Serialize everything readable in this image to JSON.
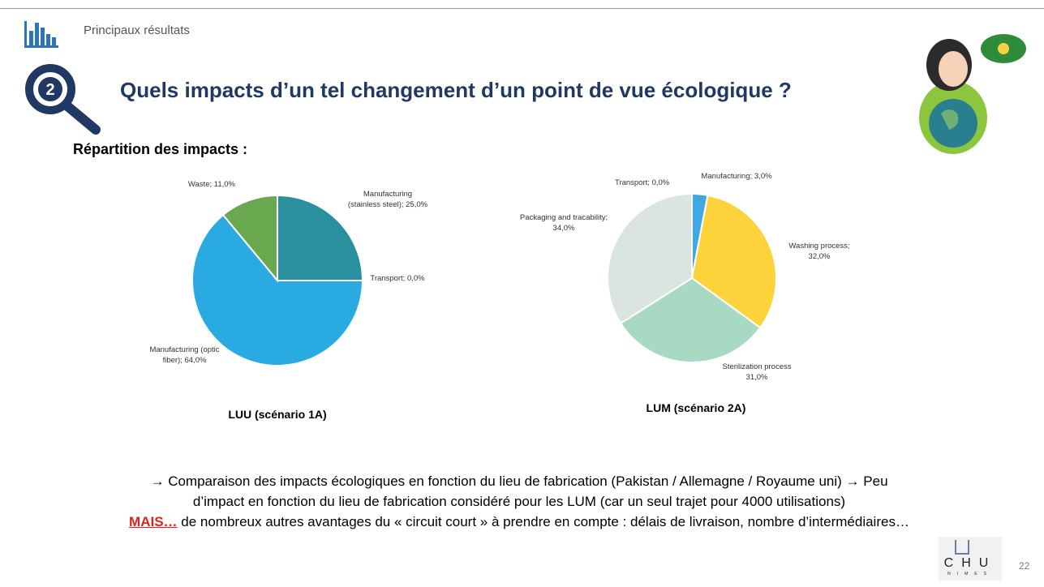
{
  "header": {
    "section": "Principaux résultats",
    "number": "2",
    "title": "Quels impacts d’un tel changement d’un point de vue écologique ?"
  },
  "subtitle": "Répartition des impacts :",
  "chart_data": [
    {
      "type": "pie",
      "title": "LUU (scénario 1A)",
      "values": [
        25,
        0,
        64,
        11
      ],
      "value_labels": [
        "Manufacturing (stainless steel); 25,0%",
        "Transport; 0,0%",
        "Manufacturing (optic fiber); 64,0%",
        "Waste; 11,0%"
      ],
      "colors": [
        "#2a8f9e",
        "#6b8e9c",
        "#29abe2",
        "#6aa84f"
      ]
    },
    {
      "type": "pie",
      "title": "LUM (scénario 2A)",
      "values": [
        0,
        3,
        32,
        31,
        34
      ],
      "value_labels": [
        "Transport; 0,0%",
        "Manufacturing; 3,0%",
        "Washing process; 32,0%",
        "Sterilization process 31,0%",
        "Packaging and tracability; 34,0%"
      ],
      "colors": [
        "#8fb3c8",
        "#3fa9e0",
        "#fcd33b",
        "#a8d9c2",
        "#d9e5de"
      ]
    }
  ],
  "body": {
    "line1": "→ Comparaison des impacts écologiques en fonction du lieu de fabrication (Pakistan / Allemagne / Royaume uni) → Peu",
    "line2": "d’impact en fonction du lieu de fabrication considéré pour les LUM (car un seul trajet pour 4000 utilisations)",
    "emphasis": "MAIS…",
    "line3": " de nombreux autres avantages du « circuit court » à prendre en compte : délais de livraison, nombre d’intermédiaires…"
  },
  "logo": {
    "name": "CHU",
    "city": "NIMES"
  },
  "page_number": 22
}
